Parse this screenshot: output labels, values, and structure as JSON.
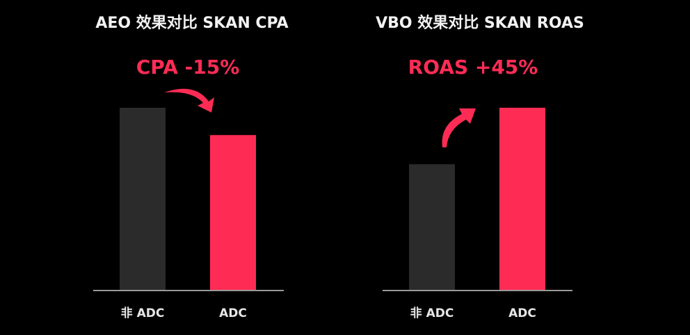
{
  "chart_data": [
    {
      "type": "bar",
      "title": "AEO 效果对比 SKAN CPA",
      "categories": [
        "非 ADC",
        "ADC"
      ],
      "values": [
        100,
        85
      ],
      "annotation": "CPA -15%",
      "annotation_arrow": "down",
      "colors": [
        "#2b2b2b",
        "#fe2c55"
      ],
      "grid": false,
      "y_axis_shown": false,
      "ylim": [
        0,
        100
      ]
    },
    {
      "type": "bar",
      "title": "VBO 效果对比 SKAN ROAS",
      "categories": [
        "非 ADC",
        "ADC"
      ],
      "values": [
        100,
        145
      ],
      "annotation": "ROAS +45%",
      "annotation_arrow": "up",
      "colors": [
        "#2b2b2b",
        "#fe2c55"
      ],
      "grid": false,
      "y_axis_shown": false,
      "ylim": [
        0,
        145
      ]
    }
  ],
  "colors": {
    "background": "#000000",
    "axis": "#9a9a9a",
    "accent": "#fe2c55"
  }
}
